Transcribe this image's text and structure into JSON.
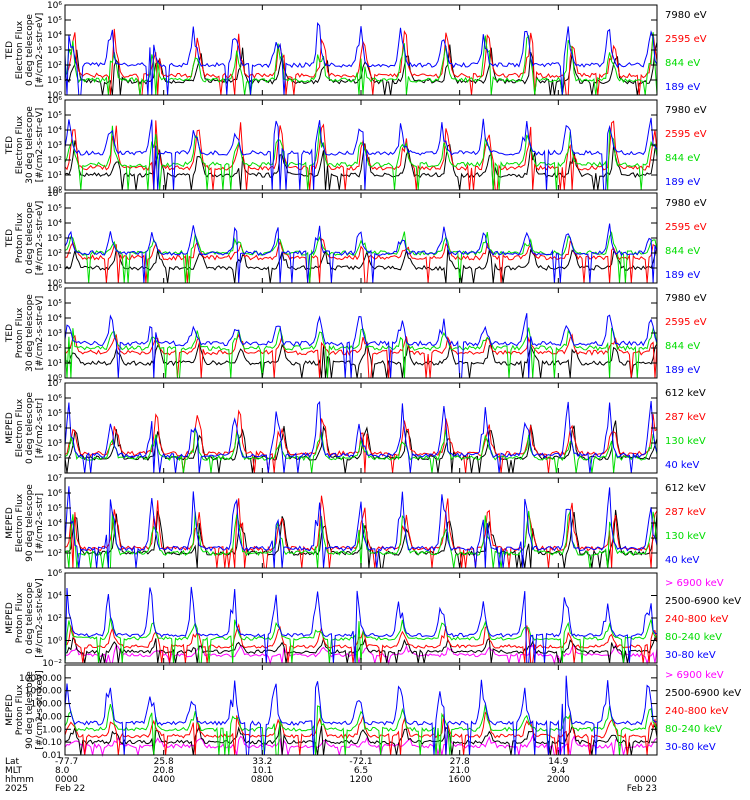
{
  "chart_data": [
    {
      "type": "line",
      "ylabel_lines": [
        "TED",
        "Electron Flux",
        "0 deg telescope",
        "[#/cm2-s-str-eV]"
      ],
      "ylim": [
        1,
        1000000
      ],
      "yscale": "log",
      "yticks": [
        {
          "value": 1,
          "label": "10⁰"
        },
        {
          "value": 10,
          "label": "10¹"
        },
        {
          "value": 100,
          "label": "10²"
        },
        {
          "value": 1000,
          "label": "10³"
        },
        {
          "value": 10000,
          "label": "10⁴"
        },
        {
          "value": 100000,
          "label": "10⁵"
        },
        {
          "value": 1000000,
          "label": "10⁶"
        }
      ],
      "series": [
        {
          "name": "7980 eV",
          "color": "#000000",
          "base": 8,
          "peak": 3000
        },
        {
          "name": "2595 eV",
          "color": "#ff0000",
          "base": 20,
          "peak": 50000
        },
        {
          "name": "844 eV",
          "color": "#00dd00",
          "base": 10,
          "peak": 20000
        },
        {
          "name": "189 eV",
          "color": "#0000ff",
          "base": 100,
          "peak": 100000
        }
      ]
    },
    {
      "type": "line",
      "ylabel_lines": [
        "TED",
        "Electron Flux",
        "30 deg telescope",
        "[#/cm2-s-str-eV]"
      ],
      "ylim": [
        1,
        1000000
      ],
      "yscale": "log",
      "yticks": [
        {
          "value": 1,
          "label": "10⁰"
        },
        {
          "value": 10,
          "label": "10¹"
        },
        {
          "value": 100,
          "label": "10²"
        },
        {
          "value": 1000,
          "label": "10³"
        },
        {
          "value": 10000,
          "label": "10⁴"
        },
        {
          "value": 100000,
          "label": "10⁵"
        },
        {
          "value": 1000000,
          "label": "10⁶"
        }
      ],
      "series": [
        {
          "name": "7980 eV",
          "color": "#000000",
          "base": 10,
          "peak": 3000
        },
        {
          "name": "2595 eV",
          "color": "#ff0000",
          "base": 30,
          "peak": 100000
        },
        {
          "name": "844 eV",
          "color": "#00dd00",
          "base": 50,
          "peak": 30000
        },
        {
          "name": "189 eV",
          "color": "#0000ff",
          "base": 300,
          "peak": 100000
        }
      ]
    },
    {
      "type": "line",
      "ylabel_lines": [
        "TED",
        "Proton Flux",
        "0 deg telescope",
        "[#/cm2-s-str-eV]"
      ],
      "ylim": [
        1,
        1000000
      ],
      "yscale": "log",
      "yticks": [
        {
          "value": 1,
          "label": "10⁰"
        },
        {
          "value": 10,
          "label": "10¹"
        },
        {
          "value": 100,
          "label": "10²"
        },
        {
          "value": 1000,
          "label": "10³"
        },
        {
          "value": 10000,
          "label": "10⁴"
        },
        {
          "value": 100000,
          "label": "10⁵"
        },
        {
          "value": 1000000,
          "label": "10⁶"
        }
      ],
      "series": [
        {
          "name": "7980 eV",
          "color": "#000000",
          "base": 10,
          "peak": 300
        },
        {
          "name": "2595 eV",
          "color": "#ff0000",
          "base": 50,
          "peak": 1000
        },
        {
          "name": "844 eV",
          "color": "#00dd00",
          "base": 100,
          "peak": 3000
        },
        {
          "name": "189 eV",
          "color": "#0000ff",
          "base": 100,
          "peak": 10000
        }
      ]
    },
    {
      "type": "line",
      "ylabel_lines": [
        "TED",
        "Proton Flux",
        "30 deg telescope",
        "[#/cm2-s-str-eV]"
      ],
      "ylim": [
        1,
        1000000
      ],
      "yscale": "log",
      "yticks": [
        {
          "value": 1,
          "label": "10⁰"
        },
        {
          "value": 10,
          "label": "10¹"
        },
        {
          "value": 100,
          "label": "10²"
        },
        {
          "value": 1000,
          "label": "10³"
        },
        {
          "value": 10000,
          "label": "10⁴"
        },
        {
          "value": 100000,
          "label": "10⁵"
        },
        {
          "value": 1000000,
          "label": "10⁶"
        }
      ],
      "series": [
        {
          "name": "7980 eV",
          "color": "#000000",
          "base": 10,
          "peak": 300
        },
        {
          "name": "2595 eV",
          "color": "#ff0000",
          "base": 50,
          "peak": 1000
        },
        {
          "name": "844 eV",
          "color": "#00dd00",
          "base": 100,
          "peak": 3000
        },
        {
          "name": "189 eV",
          "color": "#0000ff",
          "base": 200,
          "peak": 30000
        }
      ]
    },
    {
      "type": "line",
      "ylabel_lines": [
        "MEPED",
        "Electron Flux",
        "0 deg telescope",
        "[#/cm2-s-str]"
      ],
      "ylim": [
        10,
        10000000
      ],
      "yscale": "log",
      "yticks": [
        {
          "value": 100,
          "label": "10²"
        },
        {
          "value": 1000,
          "label": "10³"
        },
        {
          "value": 10000,
          "label": "10⁴"
        },
        {
          "value": 100000,
          "label": "10⁵"
        },
        {
          "value": 1000000,
          "label": "10⁶"
        },
        {
          "value": 10000000,
          "label": "10⁷"
        }
      ],
      "series": [
        {
          "name": "612 keV",
          "color": "#000000",
          "base": 100,
          "peak": 30000
        },
        {
          "name": "287 keV",
          "color": "#ff0000",
          "base": 200,
          "peak": 300000
        },
        {
          "name": "130 keV",
          "color": "#00dd00",
          "base": 100,
          "peak": 10000
        },
        {
          "name": "40 keV",
          "color": "#0000ff",
          "base": 150,
          "peak": 1000000
        }
      ]
    },
    {
      "type": "line",
      "ylabel_lines": [
        "MEPED",
        "Electron Flux",
        "90 deg telescope",
        "[#/cm2-s-str]"
      ],
      "ylim": [
        10,
        10000000
      ],
      "yscale": "log",
      "yticks": [
        {
          "value": 100,
          "label": "10²"
        },
        {
          "value": 1000,
          "label": "10³"
        },
        {
          "value": 10000,
          "label": "10⁴"
        },
        {
          "value": 100000,
          "label": "10⁵"
        },
        {
          "value": 1000000,
          "label": "10⁶"
        },
        {
          "value": 10000000,
          "label": "10⁷"
        }
      ],
      "series": [
        {
          "name": "612 keV",
          "color": "#000000",
          "base": 100,
          "peak": 100000
        },
        {
          "name": "287 keV",
          "color": "#ff0000",
          "base": 200,
          "peak": 1000000
        },
        {
          "name": "130 keV",
          "color": "#00dd00",
          "base": 100,
          "peak": 100000
        },
        {
          "name": "40 keV",
          "color": "#0000ff",
          "base": 200,
          "peak": 3000000
        }
      ]
    },
    {
      "type": "line",
      "ylabel_lines": [
        "MEPED",
        "Proton Flux",
        "0 deg telescope",
        "[#/cm2-s-str-keV]"
      ],
      "ylim": [
        0.01,
        1000000
      ],
      "yscale": "log",
      "yticks": [
        {
          "value": 0.01,
          "label": "10⁻²"
        },
        {
          "value": 1,
          "label": "10⁰"
        },
        {
          "value": 100,
          "label": "10²"
        },
        {
          "value": 10000,
          "label": "10⁴"
        },
        {
          "value": 1000000,
          "label": "10⁶"
        }
      ],
      "series": [
        {
          "name": "> 6900 keV",
          "color": "#ff00ff",
          "base": 0.05,
          "peak": 0.5
        },
        {
          "name": "2500-6900 keV",
          "color": "#000000",
          "base": 0.1,
          "peak": 2
        },
        {
          "name": "240-800 keV",
          "color": "#ff0000",
          "base": 0.3,
          "peak": 30
        },
        {
          "name": "80-240 keV",
          "color": "#00dd00",
          "base": 1.5,
          "peak": 100
        },
        {
          "name": "30-80 keV",
          "color": "#0000ff",
          "base": 3,
          "peak": 100000
        }
      ]
    },
    {
      "type": "line",
      "ylabel_lines": [
        "MEPED",
        "Proton Flux",
        "90 deg telescope",
        "[#/cm2-s-str-keV]"
      ],
      "ylim": [
        0.01,
        100000
      ],
      "yscale": "log",
      "yticks": [
        {
          "value": 0.01,
          "label": "0.01"
        },
        {
          "value": 0.1,
          "label": "0.10"
        },
        {
          "value": 1,
          "label": "1.00"
        },
        {
          "value": 10,
          "label": "10.00"
        },
        {
          "value": 100,
          "label": "100.00"
        },
        {
          "value": 1000,
          "label": "1000.00"
        },
        {
          "value": 10000,
          "label": "10000.00"
        }
      ],
      "series": [
        {
          "name": "> 6900 keV",
          "color": "#ff00ff",
          "base": 0.05,
          "peak": 0.3
        },
        {
          "name": "2500-6900 keV",
          "color": "#000000",
          "base": 0.1,
          "peak": 3
        },
        {
          "name": "240-800 keV",
          "color": "#ff0000",
          "base": 0.3,
          "peak": 30
        },
        {
          "name": "80-240 keV",
          "color": "#00dd00",
          "base": 1,
          "peak": 100
        },
        {
          "name": "30-80 keV",
          "color": "#0000ff",
          "base": 3,
          "peak": 30000
        }
      ]
    }
  ],
  "x_axis": {
    "row_labels": [
      "Lat",
      "MLT",
      "hhmm",
      "2025"
    ],
    "ticks": [
      {
        "hours": 0,
        "lat": "-77.7",
        "mlt": "8.0",
        "hhmm": "0000",
        "date": "Feb 22"
      },
      {
        "hours": 4,
        "lat": "25.8",
        "mlt": "20.8",
        "hhmm": "0400",
        "date": ""
      },
      {
        "hours": 8,
        "lat": "33.2",
        "mlt": "10.1",
        "hhmm": "0800",
        "date": ""
      },
      {
        "hours": 12,
        "lat": "-72.1",
        "mlt": "6.5",
        "hhmm": "1200",
        "date": ""
      },
      {
        "hours": 16,
        "lat": "27.8",
        "mlt": "21.0",
        "hhmm": "1600",
        "date": ""
      },
      {
        "hours": 20,
        "lat": "14.9",
        "mlt": "9.4",
        "hhmm": "2000",
        "date": ""
      },
      {
        "hours": 24,
        "lat": "",
        "mlt": "",
        "hhmm": "0000",
        "date": "Feb 23"
      }
    ],
    "range_hours": [
      0,
      24
    ]
  }
}
